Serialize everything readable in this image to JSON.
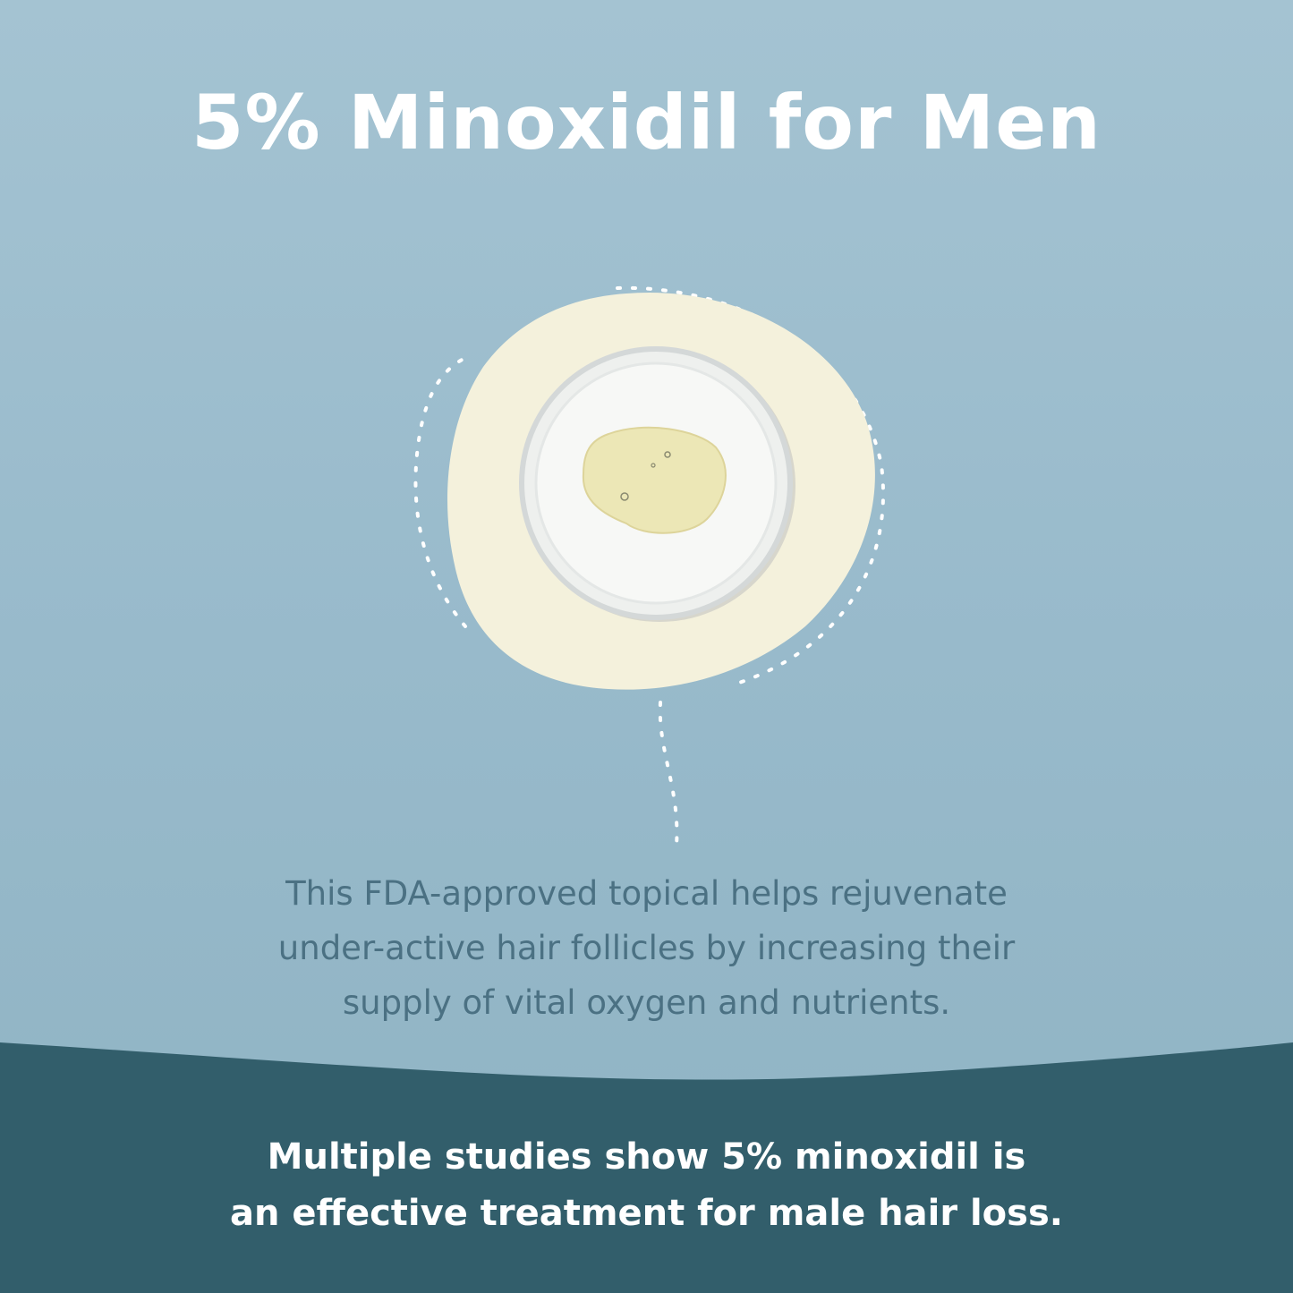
{
  "title": "5% Minoxidil for Men",
  "description": {
    "lines": [
      "This FDA-approved topical helps rejuvenate",
      "under-active hair follicles by increasing their",
      "supply of vital oxygen and nutrients."
    ]
  },
  "claim": {
    "lines": [
      "Multiple studies show 5% minoxidil is",
      "an effective treatment for male hair loss."
    ]
  },
  "colors": {
    "background": "#9bbccc",
    "band": "#325e6b",
    "blob": "#f4f1dc",
    "description_text": "#4b7183",
    "title_text": "#ffffff"
  },
  "icons": [
    "petri-dish-image",
    "dotted-line"
  ]
}
